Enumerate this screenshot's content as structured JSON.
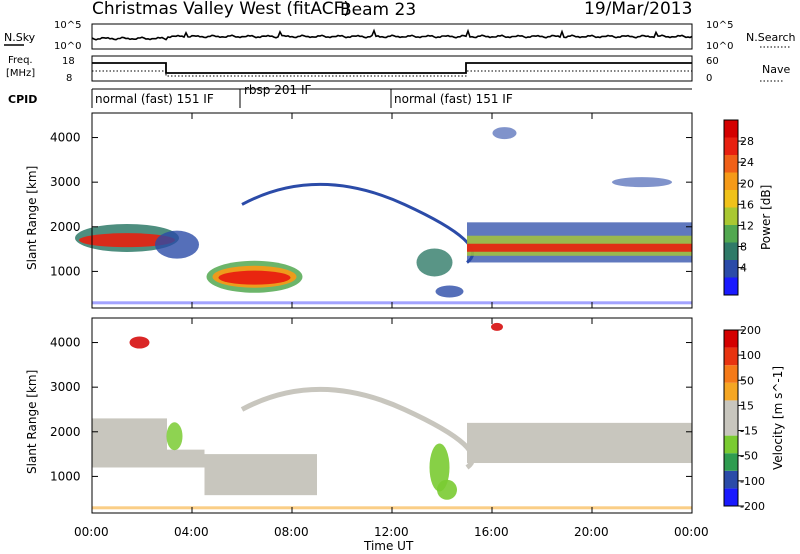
{
  "header": {
    "station": "Christmas Valley West (fitACF)",
    "beam": "Beam 23",
    "date": "19/Mar/2013"
  },
  "panels": {
    "nsky": {
      "label": "N.Sky",
      "tick_top": "10^5",
      "tick_bottom": "10^0",
      "right_label": "N.Search",
      "right_top": "10^5",
      "right_bottom": "10^0"
    },
    "freq": {
      "label_line1": "Freq.",
      "label_line2": "[MHz]",
      "tick_top": "18",
      "tick_bottom": "8",
      "right_label": "Nave",
      "right_top": "60",
      "right_bottom": "0"
    },
    "cpid": {
      "label": "CPID",
      "segments": [
        "normal (fast) 151 IF",
        "rbsp 201 IF",
        "normal (fast) 151 IF"
      ]
    }
  },
  "colors": {
    "power_scale": [
      "#1a1aff",
      "#2b4ba8",
      "#2f7a68",
      "#52a850",
      "#a9c832",
      "#f0c21a",
      "#f59a18",
      "#f06018",
      "#e82010",
      "#d40000"
    ],
    "velocity_scale": [
      "#d40000",
      "#e83410",
      "#f57a18",
      "#f5a623",
      "#c8c6be",
      "#c8c6be",
      "#7acb32",
      "#2f9c50",
      "#2b4ba8",
      "#1a1aff"
    ]
  },
  "chart_data": [
    {
      "type": "heatmap",
      "title": "Power",
      "ylabel": "Slant Range [km]",
      "xlabel": "Time UT",
      "x_ticks": [
        "00:00",
        "04:00",
        "08:00",
        "12:00",
        "16:00",
        "20:00",
        "00:00"
      ],
      "y_ticks": [
        "1000",
        "2000",
        "3000",
        "4000"
      ],
      "ylim": [
        180,
        4550
      ],
      "xlim": [
        0,
        24
      ],
      "colorbar": {
        "label": "Power [dB]",
        "ticks": [
          "4",
          "8",
          "12",
          "16",
          "20",
          "24",
          "28"
        ]
      }
    },
    {
      "type": "heatmap",
      "title": "Velocity",
      "ylabel": "Slant Range [km]",
      "xlabel": "Time UT",
      "x_ticks": [
        "00:00",
        "04:00",
        "08:00",
        "12:00",
        "16:00",
        "20:00",
        "00:00"
      ],
      "y_ticks": [
        "1000",
        "2000",
        "3000",
        "4000"
      ],
      "ylim": [
        180,
        4550
      ],
      "xlim": [
        0,
        24
      ],
      "colorbar": {
        "label": "Velocity [m s^-1]",
        "ticks": [
          "200",
          "100",
          "50",
          "15",
          "-15",
          "-50",
          "-100",
          "-200"
        ]
      }
    }
  ]
}
